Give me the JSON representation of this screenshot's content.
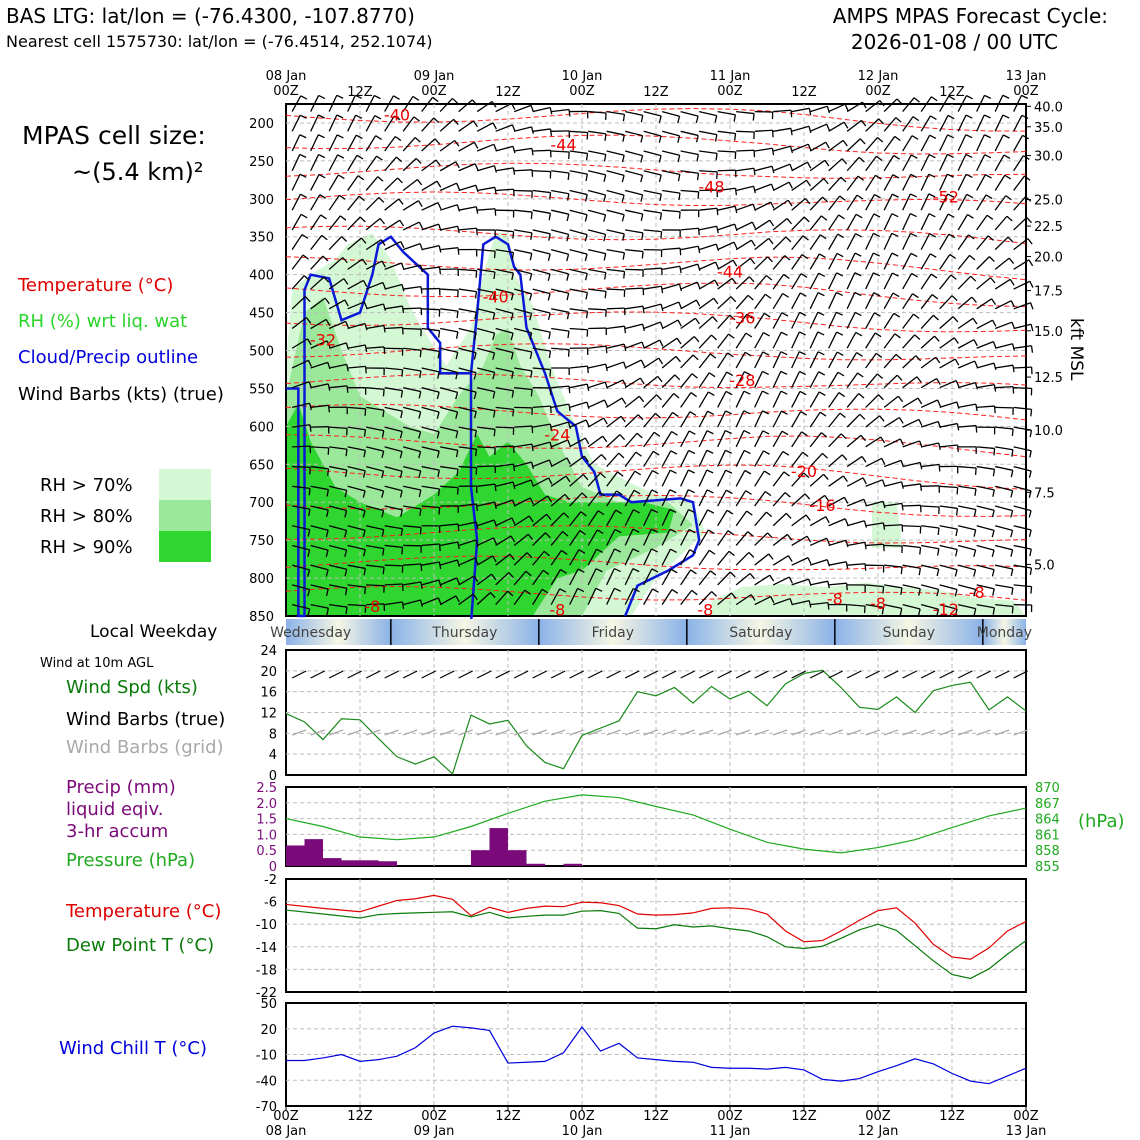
{
  "header": {
    "title_left": "BAS LTG: lat/lon = (-76.4300, -107.8770)",
    "subtitle_left": "Nearest cell 1575730: lat/lon = (-76.4514, 252.1074)",
    "title_right_1": "AMPS MPAS Forecast Cycle:",
    "title_right_2": "2026-01-08 / 00 UTC"
  },
  "legend": {
    "cell_size_1": "MPAS cell size:",
    "cell_size_2": "~(5.4 km)²",
    "temperature": "Temperature (°C)",
    "rh": "RH (%) wrt liq. wat",
    "cloud": "Cloud/Precip outline",
    "wind": "Wind Barbs (kts) (true)",
    "rh70": "RH > 70%",
    "rh80": "RH > 80%",
    "rh90": "RH > 90%",
    "rh70_color": "#d4f8d4",
    "rh80_color": "#9be89b",
    "rh90_color": "#2fd62f",
    "local_weekday": "Local Weekday",
    "wind10m_title": "Wind at 10m AGL",
    "wind_spd": "Wind Spd (kts)",
    "wind_barbs_true": "Wind Barbs (true)",
    "wind_barbs_grid": "Wind Barbs (grid)",
    "precip_1": "Precip (mm)",
    "precip_2": "liquid eqiv.",
    "precip_3": "3-hr accum",
    "pressure": "Pressure (hPa)",
    "temp2": "Temperature (°C)",
    "dew": "Dew Point T (°C)",
    "chill": "Wind Chill T (°C)",
    "hpa": "(hPa)",
    "kft": "kft MSL"
  },
  "chart_data": [
    {
      "type": "heatmap",
      "title": "Time-height cross section",
      "x_ticks_top": [
        "08 Jan\n00Z",
        "12Z",
        "09 Jan\n00Z",
        "12Z",
        "10 Jan\n00Z",
        "12Z",
        "11 Jan\n00Z",
        "12Z",
        "12 Jan\n00Z",
        "12Z",
        "13 Jan\n00Z"
      ],
      "y_left_ticks": [
        "200",
        "250",
        "300",
        "350",
        "400",
        "450",
        "500",
        "550",
        "600",
        "650",
        "700",
        "750",
        "800",
        "850"
      ],
      "y_left_values": [
        200,
        250,
        300,
        350,
        400,
        450,
        500,
        550,
        600,
        650,
        700,
        750,
        800,
        850
      ],
      "ylim_hpa": [
        175,
        850
      ],
      "y_right_ticks": [
        "40.0",
        "35.0",
        "30.0",
        "25.0",
        "22.5",
        "20.0",
        "17.5",
        "15.0",
        "12.5",
        "10.0",
        "7.5",
        "5.0"
      ],
      "y_right_hpa": [
        178,
        205,
        243,
        301,
        336,
        376,
        421,
        474,
        535,
        605,
        687,
        782
      ],
      "x_range_hours": [
        0,
        120
      ],
      "temperature_labels": [
        {
          "label": "-40",
          "t": 18,
          "p": 190
        },
        {
          "label": "-44",
          "t": 45,
          "p": 230
        },
        {
          "label": "-48",
          "t": 69,
          "p": 285
        },
        {
          "label": "-52",
          "t": 107,
          "p": 298
        },
        {
          "label": "-44",
          "t": 72,
          "p": 397
        },
        {
          "label": "-40",
          "t": 34,
          "p": 430
        },
        {
          "label": "-36",
          "t": 74,
          "p": 458
        },
        {
          "label": "-32",
          "t": 6,
          "p": 487
        },
        {
          "label": "-28",
          "t": 74,
          "p": 540
        },
        {
          "label": "-24",
          "t": 44,
          "p": 612
        },
        {
          "label": "-20",
          "t": 84,
          "p": 660
        },
        {
          "label": "-16",
          "t": 87,
          "p": 705
        },
        {
          "label": "-8",
          "t": 14,
          "p": 838
        },
        {
          "label": "-8",
          "t": 44,
          "p": 843
        },
        {
          "label": "-8",
          "t": 68,
          "p": 843
        },
        {
          "label": "-8",
          "t": 89,
          "p": 828
        },
        {
          "label": "-8",
          "t": 96,
          "p": 834
        },
        {
          "label": "-12",
          "t": 107,
          "p": 842
        },
        {
          "label": "-8",
          "t": 112,
          "p": 820
        }
      ],
      "weekdays": [
        "Wednesday",
        "Thursday",
        "Friday",
        "Saturday",
        "Sunday",
        "Monday"
      ]
    },
    {
      "type": "line",
      "title": "Wind at 10m AGL",
      "ylabel": "Wind Spd (kts)",
      "ylim": [
        0,
        24
      ],
      "y_ticks": [
        "0",
        "4",
        "8",
        "12",
        "16",
        "20",
        "24"
      ],
      "x": [
        0,
        3,
        6,
        9,
        12,
        15,
        18,
        21,
        24,
        27,
        30,
        33,
        36,
        39,
        42,
        45,
        48,
        51,
        54,
        57,
        60,
        63,
        66,
        69,
        72,
        75,
        78,
        81,
        84,
        87,
        90,
        93,
        96,
        99,
        102,
        105,
        108,
        111,
        114,
        117,
        120
      ],
      "series": [
        {
          "name": "Wind Spd (kts)",
          "values": [
            11.8,
            10.2,
            6.8,
            10.8,
            10.6,
            7.0,
            3.5,
            2.1,
            3.5,
            0.2,
            11.5,
            9.8,
            10.5,
            5.6,
            2.4,
            1.2,
            7.6,
            9.0,
            10.4,
            16.0,
            15.2,
            16.8,
            13.8,
            17.0,
            14.6,
            16.1,
            13.3,
            17.5,
            19.5,
            20.1,
            16.8,
            13.0,
            12.6,
            15.0,
            12.0,
            16.2,
            17.2,
            17.8,
            12.5,
            15.0,
            12.3
          ]
        }
      ],
      "color": "#1a8a1a"
    },
    {
      "type": "bar",
      "title": "Precip and Pressure",
      "ylabel": "Precip (mm)",
      "ylim": [
        0,
        2.5
      ],
      "y_ticks": [
        "0",
        "0.5",
        "1.0",
        "1.5",
        "2.0",
        "2.5"
      ],
      "bar_x": [
        1.5,
        4.5,
        7.5,
        10.5,
        13.5,
        16.5,
        19.5,
        31.5,
        34.5,
        37.5,
        40.5,
        46.5
      ],
      "values": [
        0.65,
        0.85,
        0.25,
        0.18,
        0.18,
        0.15,
        0.0,
        0.5,
        1.2,
        0.5,
        0.07,
        0.07
      ],
      "bar_color": "#7a0a7a",
      "pressure_ylim": [
        855,
        870
      ],
      "pressure_ticks": [
        "855",
        "858",
        "861",
        "864",
        "867",
        "870"
      ],
      "pressure_x": [
        0,
        6,
        12,
        18,
        24,
        30,
        36,
        42,
        48,
        54,
        60,
        66,
        72,
        78,
        84,
        90,
        96,
        102,
        108,
        114,
        120
      ],
      "pressure_values": [
        864.0,
        862.5,
        860.5,
        860.0,
        860.5,
        862.5,
        865.0,
        867.3,
        868.5,
        868.0,
        866.3,
        864.7,
        862.0,
        859.5,
        858.2,
        857.5,
        858.5,
        860.0,
        862.3,
        864.5,
        866.0
      ],
      "pressure_color": "#1faa1f"
    },
    {
      "type": "line",
      "title": "Temperature and Dew Point",
      "ylim": [
        -22,
        -2
      ],
      "y_ticks": [
        "-22",
        "-18",
        "-14",
        "-10",
        "-6",
        "-2"
      ],
      "x": [
        0,
        6,
        12,
        15,
        18,
        21,
        24,
        27,
        30,
        33,
        36,
        39,
        42,
        45,
        48,
        51,
        54,
        57,
        60,
        63,
        66,
        69,
        72,
        75,
        78,
        81,
        84,
        87,
        90,
        93,
        96,
        99,
        102,
        105,
        108,
        111,
        114,
        117,
        120
      ],
      "series": [
        {
          "name": "Temperature (°C)",
          "color": "#e00000",
          "values": [
            -6.5,
            -7.2,
            -7.8,
            -6.8,
            -5.8,
            -5.5,
            -4.9,
            -5.6,
            -8.5,
            -7.0,
            -7.9,
            -7.2,
            -6.8,
            -6.9,
            -6.1,
            -6.2,
            -6.7,
            -8.2,
            -8.4,
            -8.3,
            -8.0,
            -7.2,
            -7.1,
            -7.3,
            -8.2,
            -11.2,
            -13.1,
            -12.9,
            -11.2,
            -9.3,
            -7.6,
            -7.1,
            -9.8,
            -13.6,
            -15.8,
            -16.2,
            -14.2,
            -11.2,
            -9.5
          ]
        },
        {
          "name": "Dew Point T (°C)",
          "color": "#0a7a0a",
          "values": [
            -7.5,
            -8.2,
            -8.9,
            -8.3,
            -8.1,
            -8.0,
            -7.9,
            -7.8,
            -8.7,
            -7.9,
            -8.9,
            -8.6,
            -8.4,
            -8.4,
            -7.7,
            -7.6,
            -8.1,
            -10.7,
            -10.8,
            -10.1,
            -10.5,
            -10.3,
            -10.8,
            -11.2,
            -12.2,
            -14.0,
            -14.3,
            -13.9,
            -12.5,
            -11.0,
            -10.0,
            -11.1,
            -13.8,
            -16.5,
            -18.9,
            -19.6,
            -17.9,
            -15.3,
            -12.9
          ]
        }
      ]
    },
    {
      "type": "line",
      "title": "Wind Chill",
      "ylabel": "Wind Chill T (°C)",
      "ylim": [
        -70,
        50
      ],
      "y_ticks": [
        "-70",
        "-40",
        "-10",
        "20",
        "50"
      ],
      "x": [
        0,
        3,
        6,
        9,
        12,
        15,
        18,
        21,
        24,
        27,
        30,
        33,
        36,
        39,
        42,
        45,
        48,
        51,
        54,
        57,
        60,
        63,
        66,
        69,
        72,
        75,
        78,
        81,
        84,
        87,
        90,
        93,
        96,
        99,
        102,
        105,
        108,
        111,
        114,
        117,
        120
      ],
      "series": [
        {
          "name": "Wind Chill T (°C)",
          "color": "#0000dd",
          "values": [
            -17,
            -17,
            -14,
            -10,
            -18,
            -16,
            -12,
            -2,
            15,
            23,
            21,
            18,
            -20,
            -19,
            -18,
            -8,
            22,
            -6,
            3,
            -14,
            -16,
            -18,
            -19,
            -25,
            -26,
            -26,
            -27,
            -25,
            -28,
            -39,
            -41,
            -38,
            -30,
            -23,
            -15,
            -21,
            -32,
            -41,
            -44,
            -35,
            -26
          ]
        }
      ]
    }
  ],
  "x_ticks_bottom": [
    "00Z\n08 Jan",
    "12Z",
    "00Z\n09 Jan",
    "12Z",
    "00Z\n10 Jan",
    "12Z",
    "00Z\n11 Jan",
    "12Z",
    "00Z\n12 Jan",
    "12Z",
    "00Z\n13 Jan"
  ]
}
